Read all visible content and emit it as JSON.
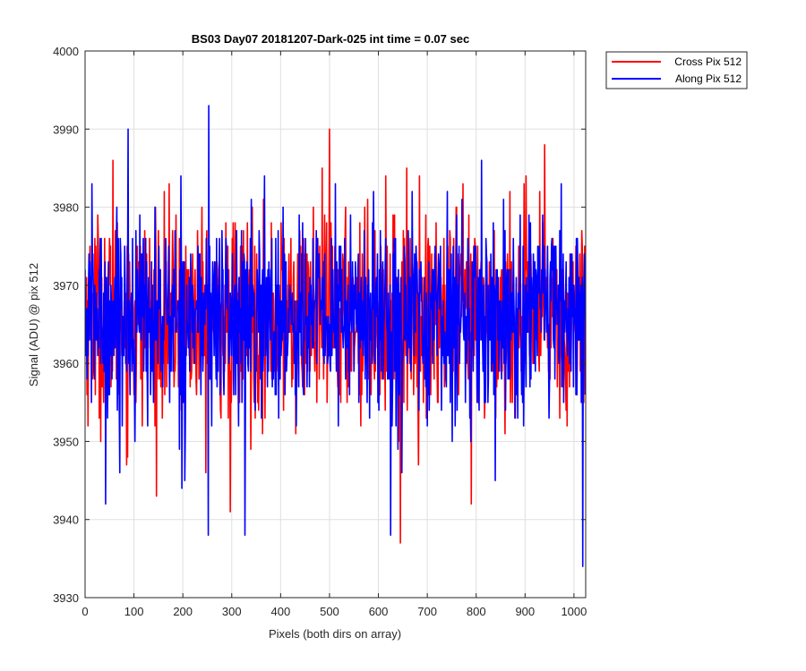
{
  "chart_data": {
    "type": "line",
    "title": "BS03 Day07 20181207-Dark-025 int time = 0.07 sec",
    "xlabel": "Pixels (both dirs on array)",
    "ylabel": "Signal (ADU) @ pix 512",
    "xlim": [
      0,
      1024
    ],
    "ylim": [
      3930,
      4000
    ],
    "xticks": [
      0,
      100,
      200,
      300,
      400,
      500,
      600,
      700,
      800,
      900,
      1000
    ],
    "yticks": [
      3930,
      3940,
      3950,
      3960,
      3970,
      3980,
      3990,
      4000
    ],
    "grid": true,
    "legend_position": "outside top-right",
    "series": [
      {
        "name": "Cross Pix 512",
        "color": "#ff0000",
        "mean": 3966,
        "range": [
          3937,
          3990
        ],
        "approx_extremes": [
          {
            "x": 500,
            "y": 3990
          },
          {
            "x": 645,
            "y": 3937
          },
          {
            "x": 297,
            "y": 3941
          },
          {
            "x": 790,
            "y": 3942
          },
          {
            "x": 940,
            "y": 3988
          },
          {
            "x": 57,
            "y": 3986
          }
        ]
      },
      {
        "name": "Along Pix 512",
        "color": "#0000ff",
        "mean": 3966,
        "range": [
          3934,
          3993
        ],
        "approx_extremes": [
          {
            "x": 253,
            "y": 3993
          },
          {
            "x": 88,
            "y": 3990
          },
          {
            "x": 1018,
            "y": 3934
          },
          {
            "x": 252,
            "y": 3938
          },
          {
            "x": 327,
            "y": 3938
          },
          {
            "x": 625,
            "y": 3938
          },
          {
            "x": 42,
            "y": 3942
          }
        ]
      }
    ]
  }
}
